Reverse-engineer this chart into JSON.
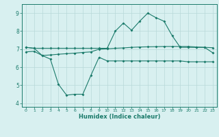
{
  "line1_x": [
    0,
    1,
    2,
    3,
    4,
    5,
    6,
    7,
    8,
    9,
    10,
    11,
    12,
    13,
    14,
    15,
    16,
    17,
    18,
    19,
    20,
    21,
    22,
    23
  ],
  "line1_y": [
    7.1,
    7.05,
    7.05,
    7.05,
    7.05,
    7.05,
    7.05,
    7.05,
    7.05,
    7.05,
    7.05,
    8.0,
    8.45,
    8.05,
    8.55,
    9.0,
    8.75,
    8.55,
    7.75,
    7.1,
    7.1,
    7.1,
    7.1,
    6.8
  ],
  "line2_x": [
    0,
    1,
    2,
    3,
    4,
    5,
    6,
    7,
    8,
    9,
    10,
    11,
    12,
    13,
    14,
    15,
    16,
    17,
    18,
    19,
    20,
    21,
    22,
    23
  ],
  "line2_y": [
    6.85,
    6.88,
    6.65,
    6.68,
    6.72,
    6.75,
    6.78,
    6.82,
    6.85,
    7.0,
    7.02,
    7.05,
    7.07,
    7.1,
    7.12,
    7.13,
    7.14,
    7.15,
    7.15,
    7.15,
    7.15,
    7.12,
    7.1,
    7.08
  ],
  "line3_x": [
    0,
    1,
    2,
    3,
    4,
    5,
    6,
    7,
    8,
    9,
    10,
    11,
    12,
    13,
    14,
    15,
    16,
    17,
    18,
    19,
    20,
    21,
    22,
    23
  ],
  "line3_y": [
    7.1,
    7.05,
    6.65,
    6.45,
    5.05,
    4.45,
    4.5,
    4.5,
    5.55,
    6.55,
    6.35,
    6.35,
    6.35,
    6.35,
    6.35,
    6.35,
    6.35,
    6.35,
    6.35,
    6.35,
    6.3,
    6.3,
    6.3,
    6.3
  ],
  "color": "#1a7a6a",
  "bg_color": "#d8f0f0",
  "grid_color": "#b8d8d8",
  "xlabel": "Humidex (Indice chaleur)",
  "ylim": [
    3.8,
    9.5
  ],
  "xlim": [
    -0.5,
    23.5
  ],
  "yticks": [
    4,
    5,
    6,
    7,
    8,
    9
  ],
  "xticks": [
    0,
    1,
    2,
    3,
    4,
    5,
    6,
    7,
    8,
    9,
    10,
    11,
    12,
    13,
    14,
    15,
    16,
    17,
    18,
    19,
    20,
    21,
    22,
    23
  ]
}
